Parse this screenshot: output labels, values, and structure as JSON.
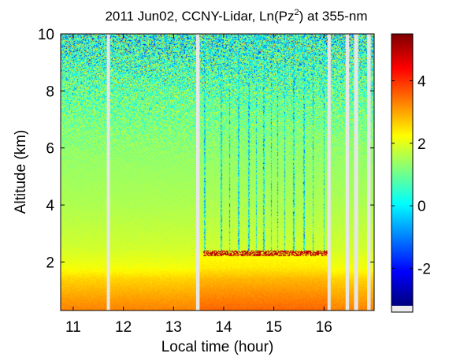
{
  "chart_data": {
    "type": "heatmap",
    "title_parts": {
      "main": "2011 Jun02, CCNY-Lidar, Ln(Pz",
      "sup": "2",
      "end": ") at 355-nm"
    },
    "xlabel": "Local time (hour)",
    "ylabel": "Altitude (km)",
    "xlim": [
      10.75,
      17.0
    ],
    "ylim": [
      0.3,
      10.0
    ],
    "x_ticks": [
      11,
      12,
      13,
      14,
      15,
      16
    ],
    "y_ticks": [
      2,
      4,
      6,
      8,
      10
    ],
    "colorbar": {
      "colormap": "jet",
      "range": [
        -3.2,
        5.5
      ],
      "ticks": [
        -2,
        0,
        2,
        4
      ],
      "tick_labels": [
        "-2",
        "0",
        "2",
        "4"
      ]
    },
    "data_gaps_hours": [
      [
        11.67,
        11.73
      ],
      [
        13.45,
        13.52
      ],
      [
        16.07,
        16.13
      ],
      [
        16.43,
        16.5
      ],
      [
        16.6,
        16.68
      ],
      [
        16.86,
        16.93
      ]
    ],
    "cloud_layer": {
      "x_range": [
        13.6,
        16.1
      ],
      "altitude_km": 2.3,
      "value": 5.0
    },
    "clear_columns_hours": [
      13.62,
      13.95,
      14.12,
      14.3,
      14.5,
      14.65,
      14.8,
      14.95,
      15.08,
      15.22,
      15.4,
      15.6,
      15.78,
      16.0
    ],
    "profile_levels": [
      {
        "altitude_km": 0.3,
        "value": 3.3
      },
      {
        "altitude_km": 0.8,
        "value": 3.0
      },
      {
        "altitude_km": 1.4,
        "value": 2.6
      },
      {
        "altitude_km": 1.8,
        "value": 2.15
      },
      {
        "altitude_km": 2.5,
        "value": 1.85
      },
      {
        "altitude_km": 4.0,
        "value": 1.55
      },
      {
        "altitude_km": 6.0,
        "value": 1.3
      },
      {
        "altitude_km": 8.0,
        "value": 0.9
      },
      {
        "altitude_km": 10.0,
        "value": 0.4
      }
    ]
  }
}
